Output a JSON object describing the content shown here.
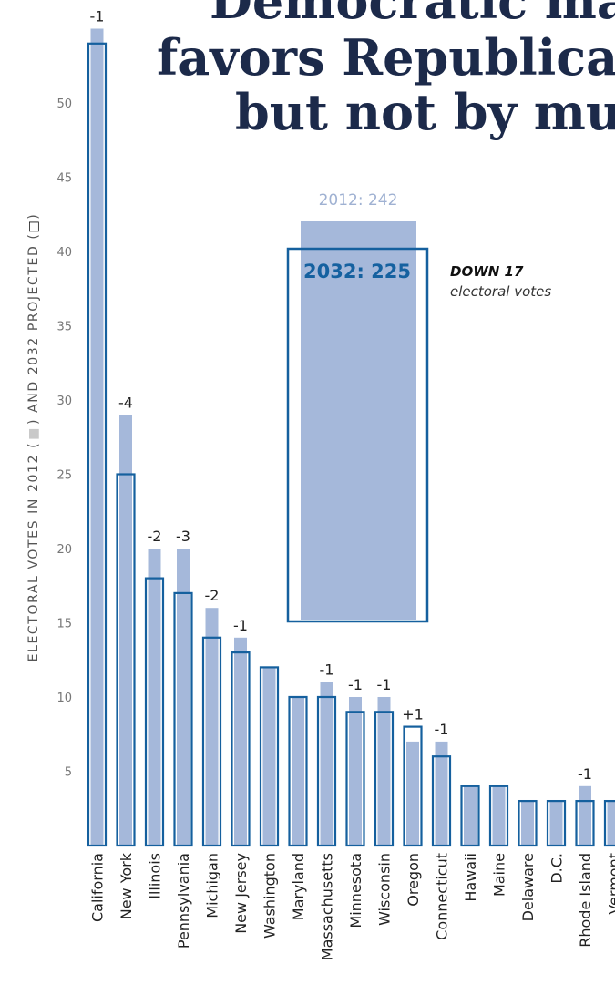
{
  "title": {
    "line1": "Democratic map",
    "line2": "favors Republicans",
    "line3": "but not by much"
  },
  "ylabel": {
    "part1": "ELECTORAL VOTES IN 2012 (",
    "part2": ") AND 2032 PROJECTED (",
    "part3": ")"
  },
  "totals": {
    "label2012": "2012: 242",
    "label2032": "2032: 225",
    "value2012": 242,
    "value2032": 225,
    "change_head": "DOWN 17",
    "change_sub": "electoral votes"
  },
  "colors": {
    "bar2012": "#a5b8da",
    "outline2032": "#15609e",
    "text": "#222222"
  },
  "chart_data": {
    "type": "bar",
    "ylabel": "ELECTORAL VOTES IN 2012 ( ) AND 2032 PROJECTED ( )",
    "yticks": [
      5,
      10,
      15,
      20,
      25,
      30,
      35,
      40,
      45,
      50
    ],
    "ylim": [
      0,
      55
    ],
    "categories": [
      "California",
      "New York",
      "Illinois",
      "Pennsylvania",
      "Michigan",
      "New Jersey",
      "Washington",
      "Maryland",
      "Massachusetts",
      "Minnesota",
      "Wisconsin",
      "Oregon",
      "Connecticut",
      "Hawaii",
      "Maine",
      "Delaware",
      "D.C.",
      "Rhode Island",
      "Vermont"
    ],
    "series": [
      {
        "values": [
          55,
          29,
          20,
          20,
          16,
          14,
          12,
          10,
          11,
          10,
          10,
          7,
          7,
          4,
          4,
          3,
          3,
          4,
          3
        ]
      },
      {
        "values": [
          54,
          25,
          18,
          17,
          14,
          13,
          12,
          10,
          10,
          9,
          9,
          8,
          6,
          4,
          4,
          3,
          3,
          3,
          3
        ]
      }
    ],
    "change_labels": [
      "-1",
      "-4",
      "-2",
      "-3",
      "-2",
      "-1",
      "",
      "",
      "-1",
      "-1",
      "-1",
      "+1",
      "-1",
      "",
      "",
      "",
      "",
      "-1",
      ""
    ]
  }
}
